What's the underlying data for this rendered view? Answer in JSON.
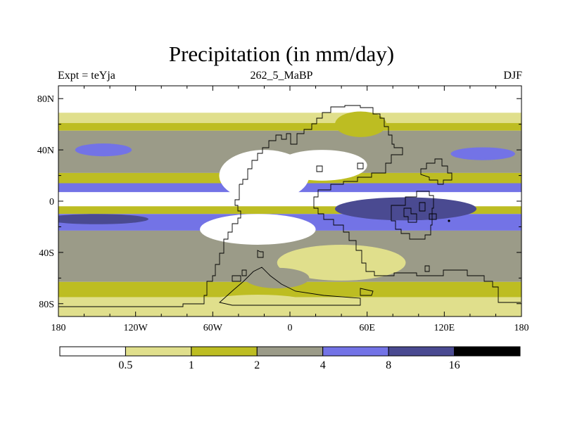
{
  "title": "Precipitation (in mm/day)",
  "subtitle_left": "Expt = teYja",
  "subtitle_center": "262_5_MaBP",
  "subtitle_right": "DJF",
  "map": {
    "lon_ticks": [
      "180",
      "120W",
      "60W",
      "0",
      "60E",
      "120E",
      "180"
    ],
    "lat_ticks": [
      "80N",
      "40N",
      "0",
      "40S",
      "80S"
    ],
    "bands": [
      {
        "name": "far-north-white",
        "lat_top": 90,
        "lat_bot": 69,
        "level": 0
      },
      {
        "name": "north-polar-light",
        "lat_top": 69,
        "lat_bot": 61,
        "level": 1
      },
      {
        "name": "north-polar-olive",
        "lat_top": 61,
        "lat_bot": 55,
        "level": 2
      },
      {
        "name": "north-storm-grey",
        "lat_top": 55,
        "lat_bot": 22,
        "level": 3
      },
      {
        "name": "north-subtropic-olive",
        "lat_top": 22,
        "lat_bot": 14,
        "level": 2
      },
      {
        "name": "north-itcz-blue",
        "lat_top": 14,
        "lat_bot": 7,
        "level": 4
      },
      {
        "name": "equatorial-white",
        "lat_top": 7,
        "lat_bot": -4,
        "level": 0
      },
      {
        "name": "south-subtropic-olive",
        "lat_top": -4,
        "lat_bot": -10,
        "level": 2
      },
      {
        "name": "south-itcz-blue",
        "lat_top": -10,
        "lat_bot": -23,
        "level": 4
      },
      {
        "name": "south-storm-grey",
        "lat_top": -23,
        "lat_bot": -63,
        "level": 3
      },
      {
        "name": "south-polar-olive",
        "lat_top": -63,
        "lat_bot": -75,
        "level": 2
      },
      {
        "name": "south-polar-light",
        "lat_top": -75,
        "lat_bot": -90,
        "level": 1
      }
    ],
    "blobs": [
      {
        "name": "ocean-core-west",
        "lon": -150,
        "lat": -14,
        "rlon": 40,
        "rlat": 4,
        "level": 5
      },
      {
        "name": "ocean-core-east",
        "lon": 90,
        "lat": -6,
        "rlon": 55,
        "rlat": 9,
        "level": 5
      },
      {
        "name": "north-blue-patch-west",
        "lon": -145,
        "lat": 40,
        "rlon": 22,
        "rlat": 5,
        "level": 4
      },
      {
        "name": "north-blue-patch-east",
        "lon": 150,
        "lat": 37,
        "rlon": 25,
        "rlat": 5,
        "level": 4
      },
      {
        "name": "pangea-west-dry",
        "lon": -20,
        "lat": 20,
        "rlon": 35,
        "rlat": 20,
        "level": 0
      },
      {
        "name": "pangea-central-dry",
        "lon": 25,
        "lat": 28,
        "rlon": 35,
        "rlat": 12,
        "level": 0
      },
      {
        "name": "pangea-south-dry",
        "lon": -25,
        "lat": -22,
        "rlon": 45,
        "rlat": 12,
        "level": 0
      },
      {
        "name": "pangea-north-olive",
        "lon": 55,
        "lat": 60,
        "rlon": 20,
        "rlat": 10,
        "level": 2
      },
      {
        "name": "pangea-interior-light",
        "lon": 40,
        "lat": -48,
        "rlon": 50,
        "rlat": 14,
        "level": 1
      },
      {
        "name": "south-polar-grey",
        "lon": -10,
        "lat": -60,
        "rlon": 25,
        "rlat": 8,
        "level": 3
      },
      {
        "name": "south-polar-cap",
        "lon": -25,
        "lat": -83,
        "rlon": 50,
        "rlat": 10,
        "level": 1
      }
    ]
  },
  "colorbar": {
    "labels": [
      "0.5",
      "1",
      "2",
      "4",
      "8",
      "16"
    ],
    "colors": [
      "#ffffff",
      "#e0df8c",
      "#bdbd22",
      "#9b9b88",
      "#7373e6",
      "#4a4a91",
      "#000000"
    ]
  }
}
